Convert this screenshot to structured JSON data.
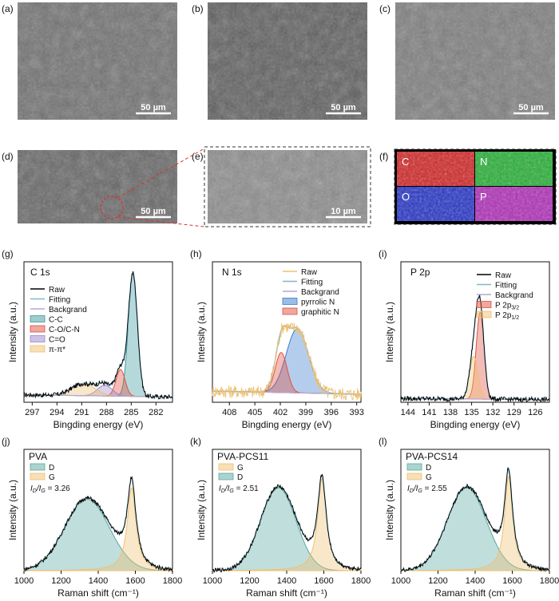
{
  "sem": [
    {
      "id": "a",
      "label": "(a)",
      "scale": "50 µm",
      "tone": "#6d6d6d"
    },
    {
      "id": "b",
      "label": "(b)",
      "scale": "50 µm",
      "tone": "#5a5a5a"
    },
    {
      "id": "c",
      "label": "(c)",
      "scale": "50 µm",
      "tone": "#7a7a7a"
    },
    {
      "id": "d",
      "label": "(d)",
      "scale": "50 µm",
      "tone": "#626262"
    },
    {
      "id": "e",
      "label": "(e)",
      "scale": "10 µm",
      "tone": "#8a8a8a"
    },
    {
      "id": "f",
      "label": "(f)",
      "scale": "",
      "tone": "#000000"
    }
  ],
  "eds": [
    {
      "element": "C",
      "color": "#d42020"
    },
    {
      "element": "N",
      "color": "#20b030"
    },
    {
      "element": "O",
      "color": "#2030c8"
    },
    {
      "element": "P",
      "color": "#b028b8"
    }
  ],
  "colors": {
    "raw": "#000000",
    "fitting": "#7fb8c8",
    "background": "#b7a6d6",
    "cc": "#3d9aa0",
    "con": "#e05040",
    "co": "#9a88c8",
    "pi": "#f0c070",
    "pyrrolic": "#3a7bd0",
    "graphitic": "#e05040",
    "p32": "#e05040",
    "p12": "#f0c070",
    "ramanD": "#5aa7a0",
    "ramanG": "#f0c070"
  },
  "chart_data": [
    {
      "id": "g",
      "label": "(g)",
      "type": "line",
      "title": "C 1s",
      "xlabel": "Bingding energy (eV)",
      "ylabel": "Intensity (a.u.)",
      "xlim": [
        298,
        280
      ],
      "xticks": [
        297,
        294,
        291,
        288,
        285,
        282
      ],
      "legend": [
        "Raw",
        "Fitting",
        "Backgrand",
        "C-C",
        "C-O/C-N",
        "C=O",
        "π-π*"
      ],
      "components": [
        {
          "name": "C-C",
          "center": 284.8,
          "amplitude": 0.92,
          "width": 0.55,
          "color": "cc"
        },
        {
          "name": "C-O/C-N",
          "center": 286.3,
          "amplitude": 0.2,
          "width": 0.55,
          "color": "con"
        },
        {
          "name": "C=O",
          "center": 288.2,
          "amplitude": 0.08,
          "width": 0.9,
          "color": "co"
        },
        {
          "name": "π-π*",
          "center": 290.8,
          "amplitude": 0.09,
          "width": 1.4,
          "color": "pi"
        }
      ],
      "baseline": 0.04
    },
    {
      "id": "h",
      "label": "(h)",
      "type": "line",
      "title": "N 1s",
      "xlabel": "Bingding energy (eV)",
      "ylabel": "Intensity (a.u.)",
      "xlim": [
        410,
        392.5
      ],
      "xticks": [
        408,
        405,
        402,
        399,
        396,
        393
      ],
      "legend": [
        "Raw",
        "Fitting",
        "Backgrand",
        "pyrrolic N",
        "graphitic N"
      ],
      "components": [
        {
          "name": "pyrrolic N",
          "center": 400.0,
          "amplitude": 0.48,
          "width": 1.3,
          "color": "pyrrolic"
        },
        {
          "name": "graphitic N",
          "center": 401.9,
          "amplitude": 0.3,
          "width": 0.7,
          "color": "graphitic"
        }
      ],
      "baseline": 0.06
    },
    {
      "id": "i",
      "label": "(i)",
      "type": "line",
      "title": "P 2p",
      "xlabel": "Bingding energy (eV)",
      "ylabel": "Intensity (a.u.)",
      "xlim": [
        145,
        124
      ],
      "xticks": [
        144,
        141,
        138,
        135,
        132,
        129,
        126
      ],
      "legend": [
        "Raw",
        "Fitting",
        "Backgrand",
        "P 2p3/2",
        "P 2p1/2"
      ],
      "components": [
        {
          "name": "P 2p3/2",
          "center": 133.8,
          "amplitude": 0.65,
          "width": 0.55,
          "color": "p32"
        },
        {
          "name": "P 2p1/2",
          "center": 134.7,
          "amplitude": 0.32,
          "width": 0.6,
          "color": "p12"
        }
      ],
      "baseline": 0.02
    },
    {
      "id": "j",
      "label": "(j)",
      "type": "line",
      "title": "PVA",
      "xlabel": "Raman shift (cm⁻¹)",
      "ylabel": "Intensity (a.u.)",
      "xlim": [
        1000,
        1800
      ],
      "xticks": [
        1000,
        1200,
        1400,
        1600,
        1800
      ],
      "legend": [
        "D",
        "G"
      ],
      "ratio": "= 3.26",
      "components": [
        {
          "name": "D",
          "center": 1340,
          "amplitude": 0.62,
          "width": 120,
          "color": "ramanD"
        },
        {
          "name": "G",
          "center": 1580,
          "amplitude": 0.72,
          "width": 28,
          "color": "ramanG"
        }
      ]
    },
    {
      "id": "k",
      "label": "(k)",
      "type": "line",
      "title": "PVA-PCS11",
      "xlabel": "Raman shift (cm⁻¹)",
      "ylabel": "Intensity (a.u.)",
      "xlim": [
        1000,
        1800
      ],
      "xticks": [
        1000,
        1200,
        1400,
        1600,
        1800
      ],
      "legend": [
        "G",
        "D"
      ],
      "ratio": "= 2.51",
      "components": [
        {
          "name": "D",
          "center": 1355,
          "amplitude": 0.72,
          "width": 95,
          "color": "ramanD"
        },
        {
          "name": "G",
          "center": 1590,
          "amplitude": 0.8,
          "width": 28,
          "color": "ramanG"
        }
      ]
    },
    {
      "id": "l",
      "label": "(l)",
      "type": "line",
      "title": "PVA-PCS14",
      "xlabel": "Raman shift (cm⁻¹)",
      "ylabel": "Intensity (a.u.)",
      "xlim": [
        1000,
        1800
      ],
      "xticks": [
        1000,
        1200,
        1400,
        1600,
        1800
      ],
      "legend": [
        "D",
        "G"
      ],
      "ratio": "= 2.55",
      "components": [
        {
          "name": "D",
          "center": 1355,
          "amplitude": 0.72,
          "width": 105,
          "color": "ramanD"
        },
        {
          "name": "G",
          "center": 1580,
          "amplitude": 0.82,
          "width": 26,
          "color": "ramanG"
        }
      ]
    }
  ]
}
